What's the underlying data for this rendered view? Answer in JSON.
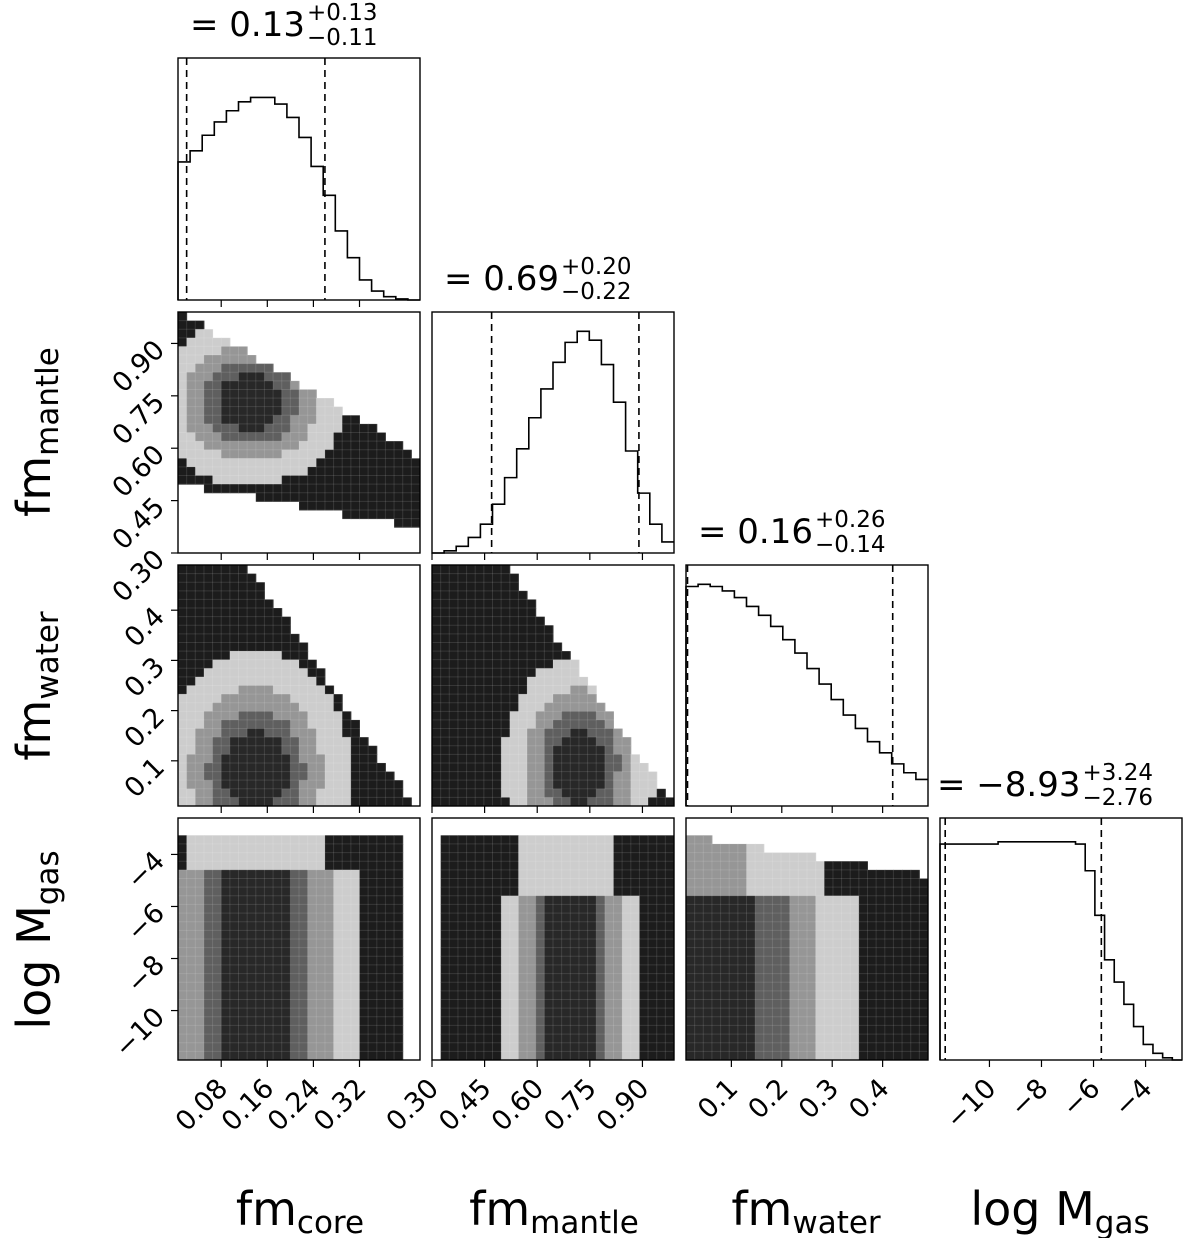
{
  "chart_data": {
    "type": "corner",
    "parameters": [
      {
        "label": "fm",
        "sub": "core"
      },
      {
        "label": "fm",
        "sub": "mantle"
      },
      {
        "label": "fm",
        "sub": "water"
      },
      {
        "label": "log M",
        "sub": "gas"
      }
    ],
    "titles": [
      {
        "prefix": "= ",
        "value": "0.13",
        "plus": "+0.13",
        "minus": "−0.11"
      },
      {
        "prefix": "= ",
        "value": "0.69",
        "plus": "+0.20",
        "minus": "−0.22"
      },
      {
        "prefix": "= ",
        "value": "0.16",
        "plus": "+0.26",
        "minus": "−0.14"
      },
      {
        "prefix": "= ",
        "value": "−8.93",
        "plus": "+3.24",
        "minus": "−2.76"
      }
    ],
    "ranges": [
      [
        0.005,
        0.425
      ],
      [
        0.3,
        0.99
      ],
      [
        0.01,
        0.49
      ],
      [
        -11.9,
        -2.6
      ]
    ],
    "xticks": [
      [
        {
          "v": 0.08,
          "t": "0.08"
        },
        {
          "v": 0.16,
          "t": "0.16"
        },
        {
          "v": 0.24,
          "t": "0.24"
        },
        {
          "v": 0.32,
          "t": "0.32"
        }
      ],
      [
        {
          "v": 0.3,
          "t": "0.30"
        },
        {
          "v": 0.45,
          "t": "0.45"
        },
        {
          "v": 0.6,
          "t": "0.60"
        },
        {
          "v": 0.75,
          "t": "0.75"
        },
        {
          "v": 0.9,
          "t": "0.90"
        }
      ],
      [
        {
          "v": 0.1,
          "t": "0.1"
        },
        {
          "v": 0.2,
          "t": "0.2"
        },
        {
          "v": 0.3,
          "t": "0.3"
        },
        {
          "v": 0.4,
          "t": "0.4"
        }
      ],
      [
        {
          "v": -10,
          "t": "−10"
        },
        {
          "v": -8,
          "t": "−8"
        },
        {
          "v": -6,
          "t": "−6"
        },
        {
          "v": -4,
          "t": "−4"
        }
      ]
    ],
    "yticks": [
      null,
      [
        {
          "v": 0.3,
          "t": "0.30"
        },
        {
          "v": 0.45,
          "t": "0.45"
        },
        {
          "v": 0.6,
          "t": "0.60"
        },
        {
          "v": 0.75,
          "t": "0.75"
        },
        {
          "v": 0.9,
          "t": "0.90"
        }
      ],
      [
        {
          "v": 0.1,
          "t": "0.1"
        },
        {
          "v": 0.2,
          "t": "0.2"
        },
        {
          "v": 0.3,
          "t": "0.3"
        },
        {
          "v": 0.4,
          "t": "0.4"
        }
      ],
      [
        {
          "v": -10,
          "t": "−10"
        },
        {
          "v": -8,
          "t": "−8"
        },
        {
          "v": -6,
          "t": "−6"
        },
        {
          "v": -4,
          "t": "−4"
        }
      ]
    ],
    "histograms": [
      {
        "quantiles": [
          0.02,
          0.26
        ],
        "values": [
          0.62,
          0.67,
          0.74,
          0.8,
          0.85,
          0.89,
          0.91,
          0.91,
          0.88,
          0.82,
          0.73,
          0.6,
          0.47,
          0.31,
          0.19,
          0.09,
          0.04,
          0.015,
          0.005,
          0.0
        ]
      },
      {
        "quantiles": [
          0.47,
          0.89
        ],
        "values": [
          0.0,
          0.01,
          0.03,
          0.07,
          0.13,
          0.22,
          0.34,
          0.47,
          0.61,
          0.74,
          0.86,
          0.95,
          1.0,
          0.96,
          0.85,
          0.68,
          0.46,
          0.27,
          0.13,
          0.05
        ]
      },
      {
        "quantiles": [
          0.013,
          0.42
        ],
        "values": [
          0.99,
          1.0,
          0.99,
          0.97,
          0.94,
          0.9,
          0.86,
          0.81,
          0.75,
          0.69,
          0.62,
          0.55,
          0.48,
          0.41,
          0.35,
          0.29,
          0.24,
          0.19,
          0.15,
          0.12
        ]
      },
      {
        "quantiles": [
          -11.7,
          -5.7
        ],
        "values": [
          0.97,
          0.97,
          0.97,
          0.97,
          0.97,
          0.97,
          0.98,
          0.98,
          0.98,
          0.98,
          0.98,
          0.98,
          0.98,
          0.98,
          0.97,
          0.85,
          0.65,
          0.45,
          0.35,
          0.25,
          0.15,
          0.07,
          0.03,
          0.01,
          0.0
        ]
      }
    ],
    "grid": false
  }
}
